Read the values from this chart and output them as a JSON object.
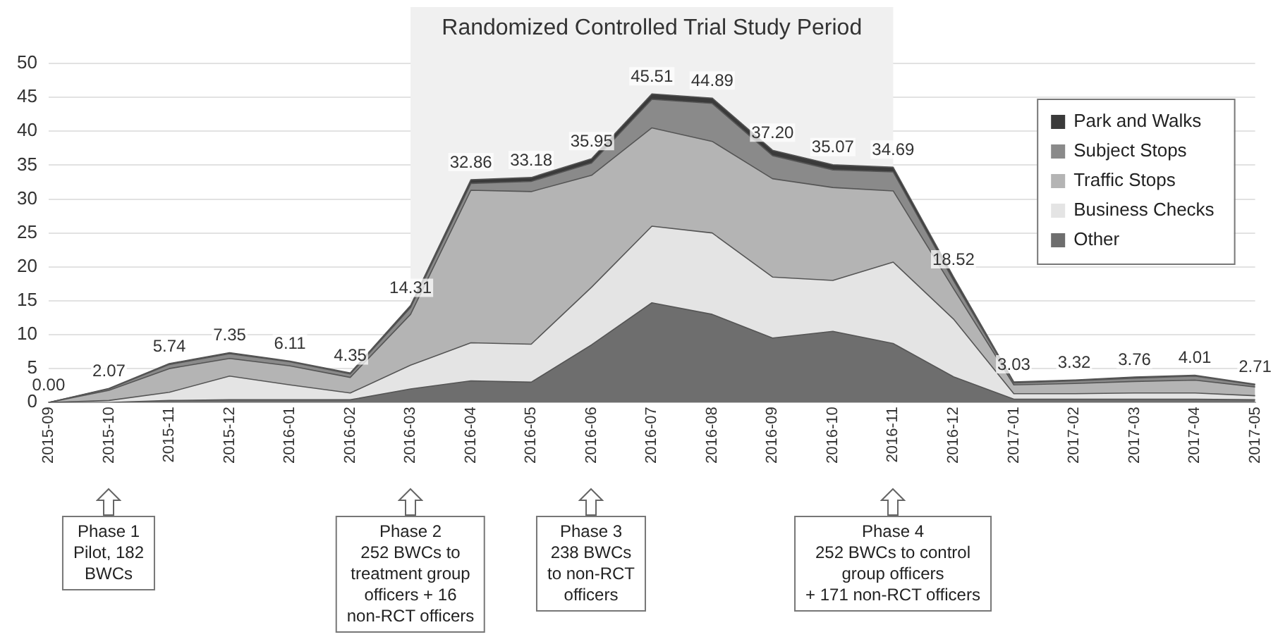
{
  "chart_data": {
    "type": "area",
    "stacked": true,
    "categories": [
      "2015-09",
      "2015-10",
      "2015-11",
      "2015-12",
      "2016-01",
      "2016-02",
      "2016-03",
      "2016-04",
      "2016-05",
      "2016-06",
      "2016-07",
      "2016-08",
      "2016-09",
      "2016-10",
      "2016-11",
      "2016-12",
      "2017-01",
      "2017-02",
      "2017-03",
      "2017-04",
      "2017-05"
    ],
    "series": [
      {
        "name": "Other",
        "color": "#6e6e6e",
        "values": [
          0,
          0,
          0.3,
          0.4,
          0.4,
          0.4,
          2.0,
          3.2,
          3.0,
          8.5,
          14.7,
          13,
          9.5,
          10.5,
          8.7,
          3.8,
          0.5,
          0.5,
          0.5,
          0.5,
          0.4
        ]
      },
      {
        "name": "Business Checks",
        "color": "#e4e4e4",
        "values": [
          0,
          0.3,
          1.2,
          3.5,
          2.2,
          1.0,
          3.5,
          5.6,
          5.6,
          8.5,
          11.3,
          12,
          9,
          7.5,
          12,
          8.5,
          0.8,
          0.8,
          0.9,
          0.9,
          0.6
        ]
      },
      {
        "name": "Traffic Stops",
        "color": "#b4b4b4",
        "values": [
          0,
          1.5,
          3.5,
          2.6,
          2.8,
          2.3,
          7.5,
          22.5,
          22.5,
          16.5,
          14.5,
          13.5,
          14.5,
          13.7,
          10.5,
          4.5,
          1.3,
          1.5,
          1.7,
          1.9,
          1.3
        ]
      },
      {
        "name": "Subject Stops",
        "color": "#8a8a8a",
        "values": [
          0,
          0.2,
          0.6,
          0.7,
          0.6,
          0.5,
          1.0,
          1.0,
          1.5,
          1.8,
          4.2,
          5.6,
          3.4,
          2.6,
          2.8,
          1.2,
          0.3,
          0.4,
          0.5,
          0.6,
          0.3
        ]
      },
      {
        "name": "Park and Walks",
        "color": "#3a3a3a",
        "values": [
          0,
          0.07,
          0.14,
          0.15,
          0.11,
          0.15,
          0.31,
          0.56,
          0.58,
          0.65,
          0.81,
          0.79,
          0.8,
          0.77,
          0.69,
          0.52,
          0.13,
          0.12,
          0.16,
          0.11,
          0.11
        ]
      }
    ],
    "totals": [
      "0.00",
      "2.07",
      "5.74",
      "7.35",
      "6.11",
      "4.35",
      "14.31",
      "32.86",
      "33.18",
      "35.95",
      "45.51",
      "44.89",
      "37.20",
      "35.07",
      "34.69",
      "18.52",
      "3.03",
      "3.32",
      "3.76",
      "4.01",
      "2.71"
    ],
    "ylim": [
      0,
      50
    ],
    "yticks": [
      0,
      5,
      10,
      15,
      20,
      25,
      30,
      35,
      40,
      45,
      50
    ],
    "grid": "y",
    "legend": "top right",
    "bands": [
      {
        "axis": "x",
        "from": "2016-03",
        "to": "2016-11",
        "label": "Randomized Controlled Trial Study Period",
        "color": "#f0f0f0"
      }
    ],
    "annotations": [
      "Phase 1\nPilot, 182\nBWCs",
      "Phase 2\n252 BWCs to\ntreatment group\nofficers + 16\nnon-RCT officers",
      "Phase 3\n238 BWCs\nto non-RCT\nofficers",
      "Phase 4\n252 BWCs to control\ngroup officers\n+ 171 non-RCT officers"
    ]
  }
}
